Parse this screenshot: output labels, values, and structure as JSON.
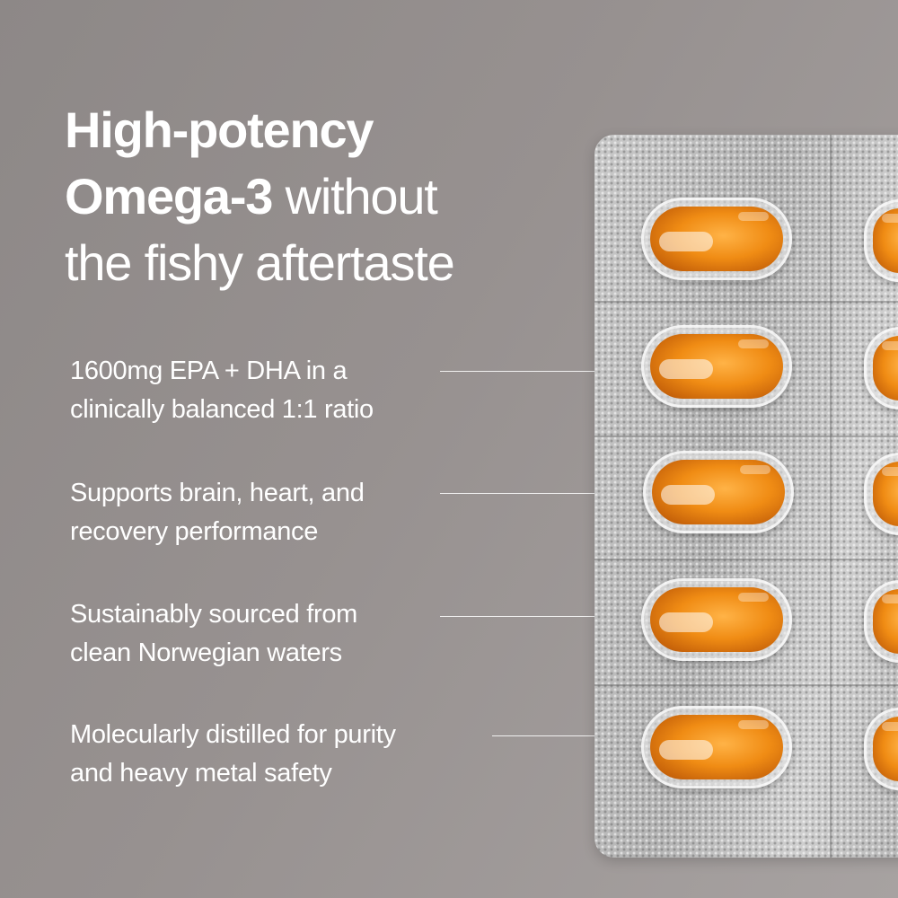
{
  "headline": {
    "line1": "High-potency",
    "line2_bold": "Omega-3",
    "line2_rest": " without",
    "line3": "the fishy aftertaste"
  },
  "features": [
    {
      "line1": "1600mg EPA + DHA in a",
      "line2": "clinically balanced 1:1 ratio"
    },
    {
      "line1": "Supports brain, heart, and",
      "line2": "recovery performance"
    },
    {
      "line1": "Sustainably sourced from",
      "line2": "clean Norwegian waters"
    },
    {
      "line1": "Molecularly distilled for purity",
      "line2": "and heavy metal safety"
    }
  ],
  "colors": {
    "background": "#979190",
    "text": "#ffffff",
    "capsule": "#f08c14",
    "foil": "#bdbdbd"
  }
}
